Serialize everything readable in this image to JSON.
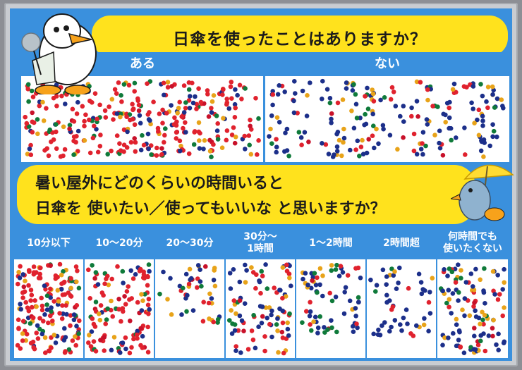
{
  "question1": {
    "title": "日傘を使ったことはありますか？",
    "columns": [
      {
        "label": "ある"
      },
      {
        "label": "ない"
      }
    ]
  },
  "question2": {
    "title_line1": "暑い屋外にどのくらいの時間いると",
    "title_line2": "日傘を 使いたい／使ってもいいな と思いますか？",
    "columns": [
      {
        "label": "10分以下"
      },
      {
        "label": "10〜20分"
      },
      {
        "label": "20〜30分"
      },
      {
        "label_line1": "30分〜",
        "label_line2": "1時間"
      },
      {
        "label": "1〜2時間"
      },
      {
        "label": "2時間超"
      },
      {
        "label_line1": "何時間でも",
        "label_line2": "使いたくない"
      }
    ]
  },
  "dot_colors": [
    "#e0222e",
    "#1c2f8a",
    "#0f7a3a",
    "#e8a319",
    "#c8112a"
  ],
  "colors": {
    "board_blue": "#3a90dd",
    "banner_yellow": "#ffe21d",
    "sticker_red": "#e0222e",
    "sticker_navy": "#1c2f8a",
    "sticker_green": "#0f7a3a",
    "sticker_orange": "#e8a319"
  }
}
